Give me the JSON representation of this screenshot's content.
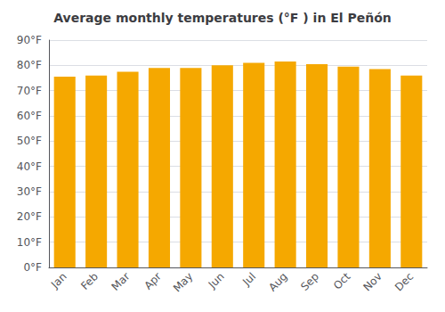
{
  "chart_data": {
    "type": "bar",
    "title": "Average monthly temperatures (°F ) in El Peñón",
    "categories": [
      "Jan",
      "Feb",
      "Mar",
      "Apr",
      "May",
      "Jun",
      "Jul",
      "Aug",
      "Sep",
      "Oct",
      "Nov",
      "Dec"
    ],
    "values": [
      75.5,
      76.0,
      77.5,
      79.0,
      79.0,
      80.0,
      81.0,
      81.5,
      80.5,
      79.5,
      78.5,
      76.0
    ],
    "color": "#F5A800",
    "ylim": [
      0,
      90
    ],
    "yticks": [
      {
        "value": 0,
        "label": "0°F"
      },
      {
        "value": 10,
        "label": "10°F"
      },
      {
        "value": 20,
        "label": "20°F"
      },
      {
        "value": 30,
        "label": "30°F"
      },
      {
        "value": 40,
        "label": "40°F"
      },
      {
        "value": 50,
        "label": "50°F"
      },
      {
        "value": 60,
        "label": "60°F"
      },
      {
        "value": 70,
        "label": "70°F"
      },
      {
        "value": 80,
        "label": "80°F"
      },
      {
        "value": 90,
        "label": "90°F"
      }
    ],
    "grid": true
  }
}
